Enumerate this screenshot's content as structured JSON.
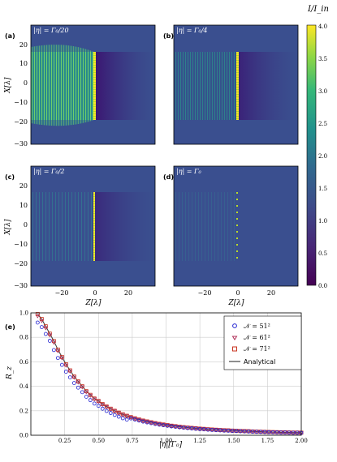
{
  "colors": {
    "background_dark": "#3a4f8f",
    "viridis_low": "#440154",
    "viridis_mid": "#21918c",
    "viridis_high": "#fde725",
    "series_51": "#1f1fd0",
    "series_61": "#b0305a",
    "series_71": "#c8321e",
    "analytical": "#444444"
  },
  "colorbar": {
    "label": "I/I_in",
    "ticks": [
      "0.0",
      "0.5",
      "1.0",
      "1.5",
      "2.0",
      "2.5",
      "3.0",
      "3.5",
      "4.0"
    ]
  },
  "panels": [
    {
      "letter": "(a)",
      "title": "|η| = Γ₀/20"
    },
    {
      "letter": "(b)",
      "title": "|η| = Γ₀/4"
    },
    {
      "letter": "(c)",
      "title": "|η| = Γ₀/2"
    },
    {
      "letter": "(d)",
      "title": "|η| = Γ₀"
    }
  ],
  "heatmap_axes": {
    "xlabel": "Z[λ]",
    "ylabel": "X[λ]",
    "xticks": [
      "−20",
      "0",
      "20"
    ],
    "yticks": [
      "20",
      "10",
      "0",
      "−10",
      "−20",
      "−30"
    ]
  },
  "bottom_panel": {
    "letter": "(e)",
    "xlabel": "|η|[Γ₀]",
    "ylabel": "R_z",
    "legend": [
      "𝒩 = 51²",
      "𝒩 = 61²",
      "𝒩 = 71²",
      "Analytical"
    ]
  },
  "chart_data": {
    "type": "scatter",
    "xlim": [
      0,
      2.0
    ],
    "ylim": [
      0,
      1.0
    ],
    "xticks": [
      "0.25",
      "0.50",
      "0.75",
      "1.00",
      "1.25",
      "1.50",
      "1.75",
      "2.00"
    ],
    "yticks": [
      "0.0",
      "0.2",
      "0.4",
      "0.6",
      "0.8",
      "1.0"
    ],
    "grid": true,
    "legend_position": "top-right",
    "series": [
      {
        "name": "𝒩 = 51²",
        "marker": "circle",
        "scale": 0.93
      },
      {
        "name": "𝒩 = 61²",
        "marker": "triangle-down",
        "scale": 0.985
      },
      {
        "name": "𝒩 = 71²",
        "marker": "square",
        "scale": 1.0
      },
      {
        "name": "Analytical",
        "marker": "line",
        "scale": 1.0
      }
    ],
    "x": [
      0.05,
      0.08,
      0.11,
      0.14,
      0.17,
      0.2,
      0.23,
      0.26,
      0.29,
      0.32,
      0.35,
      0.38,
      0.41,
      0.44,
      0.47,
      0.5,
      0.53,
      0.56,
      0.59,
      0.62,
      0.65,
      0.68,
      0.71,
      0.74,
      0.77,
      0.8,
      0.83,
      0.86,
      0.89,
      0.92,
      0.95,
      0.98,
      1.01,
      1.04,
      1.07,
      1.1,
      1.13,
      1.16,
      1.19,
      1.22,
      1.25,
      1.28,
      1.31,
      1.34,
      1.37,
      1.4,
      1.43,
      1.46,
      1.49,
      1.52,
      1.55,
      1.58,
      1.61,
      1.64,
      1.67,
      1.7,
      1.73,
      1.76,
      1.79,
      1.82,
      1.85,
      1.88,
      1.91,
      1.94,
      1.97,
      2.0
    ],
    "analytical_y": [
      0.99,
      0.95,
      0.89,
      0.83,
      0.77,
      0.7,
      0.64,
      0.58,
      0.53,
      0.48,
      0.44,
      0.4,
      0.36,
      0.33,
      0.3,
      0.28,
      0.255,
      0.235,
      0.217,
      0.2,
      0.185,
      0.171,
      0.159,
      0.148,
      0.138,
      0.129,
      0.12,
      0.113,
      0.106,
      0.099,
      0.093,
      0.088,
      0.083,
      0.078,
      0.074,
      0.07,
      0.066,
      0.063,
      0.06,
      0.057,
      0.054,
      0.052,
      0.049,
      0.047,
      0.045,
      0.043,
      0.041,
      0.04,
      0.038,
      0.037,
      0.035,
      0.034,
      0.033,
      0.031,
      0.03,
      0.029,
      0.028,
      0.027,
      0.026,
      0.025,
      0.024,
      0.024,
      0.023,
      0.022,
      0.022,
      0.021
    ]
  }
}
